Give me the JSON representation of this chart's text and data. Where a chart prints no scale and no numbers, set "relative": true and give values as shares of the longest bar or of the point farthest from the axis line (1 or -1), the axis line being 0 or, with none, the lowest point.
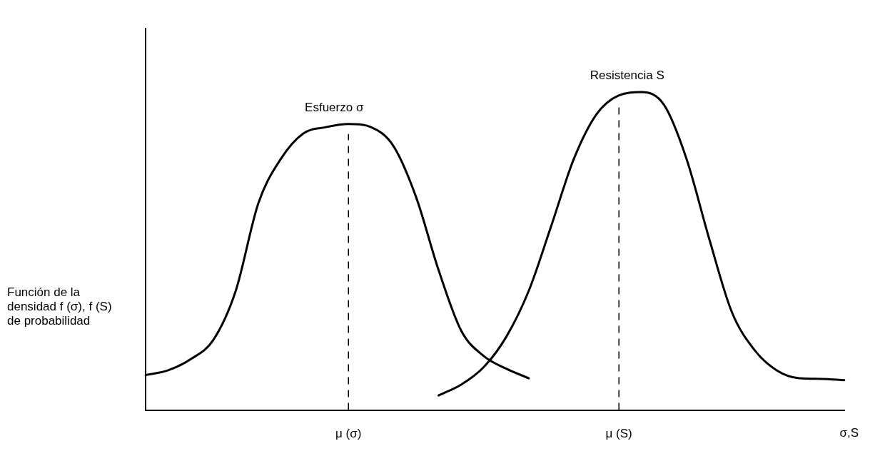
{
  "chart_data": {
    "type": "line",
    "relative": true,
    "ylabel": "Función de la densidad f (σ), f (S) de probabilidad",
    "xlabel": "σ,S",
    "categories": [
      null,
      null,
      null,
      null,
      null,
      null,
      null,
      null,
      null,
      "μ (σ)",
      null,
      null,
      null,
      null,
      null,
      null,
      null,
      null,
      null,
      null,
      null,
      "μ (S)",
      null,
      null,
      null,
      null,
      null,
      null,
      null,
      null,
      null,
      null
    ],
    "series": [
      {
        "name": "Esfuerzo σ",
        "color": "#000000",
        "values": [
          0.11,
          0.125,
          0.16,
          0.22,
          0.375,
          0.65,
          0.79,
          0.87,
          0.89,
          0.9,
          0.89,
          0.83,
          0.67,
          0.44,
          0.25,
          0.17,
          0.13,
          0.1,
          null,
          null,
          null,
          null,
          null,
          null,
          null,
          null,
          null,
          null,
          null,
          null,
          null,
          null
        ]
      },
      {
        "name": "Resistencia S",
        "color": "#000000",
        "values": [
          null,
          null,
          null,
          null,
          null,
          null,
          null,
          null,
          null,
          null,
          null,
          null,
          null,
          0.046,
          0.08,
          0.135,
          0.23,
          0.375,
          0.58,
          0.79,
          0.93,
          0.99,
          1,
          0.96,
          0.79,
          0.54,
          0.31,
          0.19,
          0.125,
          0.1,
          0.098,
          0.094
        ]
      }
    ],
    "ref_lines": [
      {
        "axis": "x",
        "value": "μ (σ)",
        "line_style": "dashed",
        "color": "#000000"
      },
      {
        "axis": "x",
        "value": "μ (S)",
        "line_style": "dashed",
        "color": "#000000"
      }
    ],
    "legend": false,
    "grid": false
  }
}
